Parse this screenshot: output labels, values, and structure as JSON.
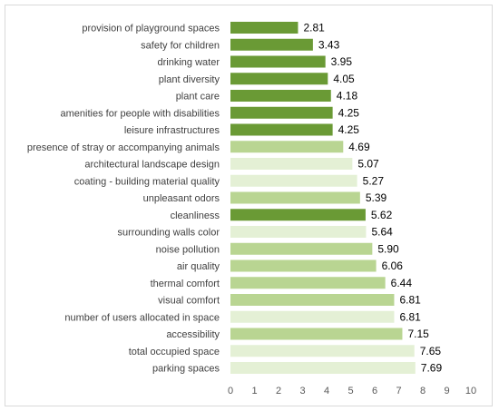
{
  "colors": {
    "dark_green": "#6a9a35",
    "light_green": "#b9d592",
    "pale_green": "#e4f0d5"
  },
  "chart_data": {
    "type": "bar",
    "orientation": "horizontal",
    "title": "",
    "xlabel": "",
    "ylabel": "",
    "xlim": [
      0,
      10
    ],
    "x_ticks": [
      "0",
      "1",
      "2",
      "3",
      "4",
      "5",
      "6",
      "7",
      "8",
      "9",
      "10"
    ],
    "grid": false,
    "legend": "none",
    "categories": [
      "provision of playground spaces",
      "safety for children",
      "drinking water",
      "plant diversity",
      "plant care",
      "amenities for people with disabilities",
      "leisure infrastructures",
      "presence of stray or accompanying animals",
      "architectural landscape design",
      "coating - building material quality",
      "unpleasant odors",
      "cleanliness",
      "surrounding walls color",
      "noise pollution",
      "air quality",
      "thermal comfort",
      "visual comfort",
      "number of users allocated in space",
      "accessibility",
      "total occupied space",
      "parking spaces"
    ],
    "values": [
      2.81,
      3.43,
      3.95,
      4.05,
      4.18,
      4.25,
      4.25,
      4.69,
      5.07,
      5.27,
      5.39,
      5.62,
      5.64,
      5.9,
      6.06,
      6.44,
      6.81,
      6.81,
      7.15,
      7.65,
      7.69
    ],
    "value_labels": [
      "2.81",
      "3.43",
      "3.95",
      "4.05",
      "4.18",
      "4.25",
      "4.25",
      "4.69",
      "5.07",
      "5.27",
      "5.39",
      "5.62",
      "5.64",
      "5.90",
      "6.06",
      "6.44",
      "6.81",
      "6.81",
      "7.15",
      "7.65",
      "7.69"
    ],
    "bar_colors": [
      "dark_green",
      "dark_green",
      "dark_green",
      "dark_green",
      "dark_green",
      "dark_green",
      "dark_green",
      "light_green",
      "pale_green",
      "pale_green",
      "light_green",
      "dark_green",
      "pale_green",
      "light_green",
      "light_green",
      "light_green",
      "light_green",
      "pale_green",
      "light_green",
      "pale_green",
      "pale_green"
    ]
  }
}
